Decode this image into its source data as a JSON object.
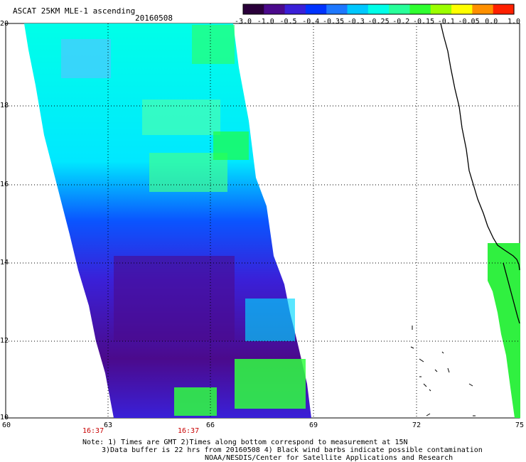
{
  "header": {
    "title": "ASCAT 25KM MLE-1 ascending",
    "date": "20160508"
  },
  "colorbar": {
    "ticks": [
      "-3.0",
      "-1.0",
      "-0.5",
      "-0.4",
      "-0.35",
      "-0.3",
      "-0.25",
      "-0.2",
      "-0.15",
      "-0.1",
      "-0.05",
      "0.0",
      "1.0"
    ],
    "colors": [
      "#2a003a",
      "#4b0a8c",
      "#3a20d8",
      "#0033ff",
      "#1e78ff",
      "#00c8ff",
      "#00ffe8",
      "#28ff9a",
      "#30ff30",
      "#9cff00",
      "#ffff00",
      "#ff9000",
      "#ff2000"
    ]
  },
  "axes": {
    "x_labels": [
      "60",
      "63",
      "66",
      "69",
      "72",
      "75"
    ],
    "y_labels": [
      "20",
      "18",
      "16",
      "14",
      "12",
      "10"
    ]
  },
  "times": [
    "16:37",
    "16:37"
  ],
  "notes": {
    "line1": "Note: 1) Times are GMT 2)Times along bottom correspond to measurement at 15N",
    "line2": "3)Data buffer is 22 hrs from 20160508 4) Black wind barbs indicate possible contamination",
    "line3": "NOAA/NESDIS/Center for Satellite Applications and Research"
  },
  "colors": {
    "time_text": "#c80000"
  }
}
